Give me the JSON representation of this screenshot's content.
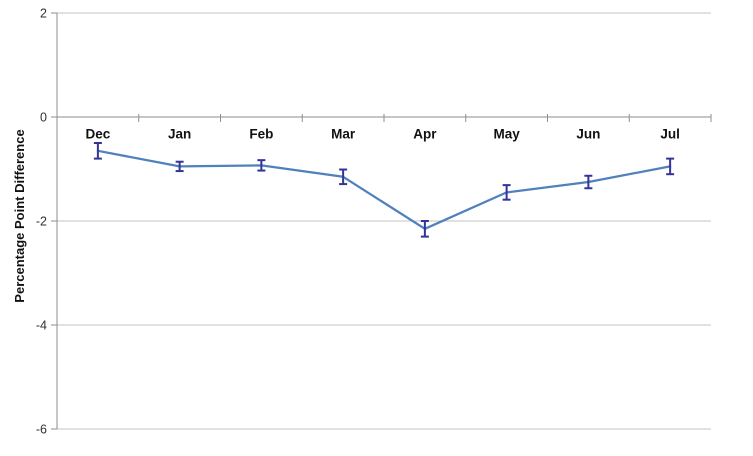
{
  "chart_data": {
    "type": "line",
    "title": "",
    "xlabel": "",
    "ylabel": "Percentage Point Difference",
    "categories": [
      "Dec",
      "Jan",
      "Feb",
      "Mar",
      "Apr",
      "May",
      "Jun",
      "Jul"
    ],
    "series": [
      {
        "values": [
          -0.65,
          -0.95,
          -0.93,
          -1.15,
          -2.15,
          -1.45,
          -1.25,
          -0.95
        ],
        "errors": [
          0.15,
          0.09,
          0.1,
          0.14,
          0.15,
          0.14,
          0.12,
          0.15
        ]
      }
    ],
    "ylim": [
      -6,
      2
    ],
    "yticks": [
      2,
      0,
      -2,
      -4,
      -6
    ],
    "grid": true,
    "legend": "none",
    "category_axis_position": 0,
    "colors": {
      "background": "#ffffff",
      "line": "#4F81BD",
      "error_bar": "#333399",
      "gridline": "#c3c3c3",
      "axis_line": "#8e8e8e",
      "tick_label": "#303030",
      "category_label": "#111111"
    }
  }
}
